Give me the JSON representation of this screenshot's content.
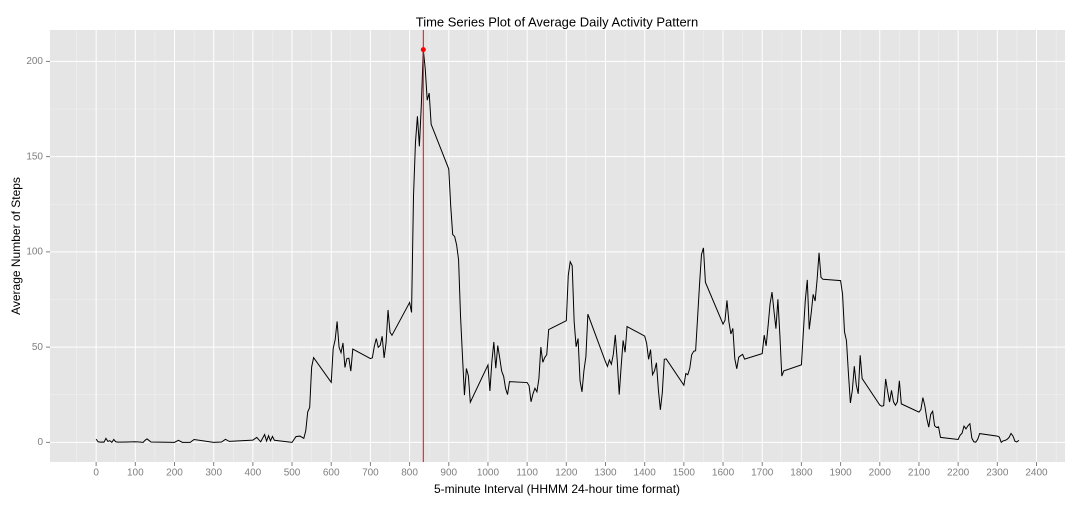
{
  "chart_data": {
    "type": "line",
    "title": "Time Series Plot of Average Daily Activity Pattern",
    "x_label": "5-minute Interval (HHMM 24-hour time format)",
    "y_label": "Average Number of Steps",
    "x": [
      0,
      5,
      10,
      15,
      20,
      25,
      30,
      35,
      40,
      45,
      50,
      55,
      100,
      110,
      120,
      125,
      130,
      140,
      200,
      210,
      220,
      240,
      250,
      300,
      320,
      330,
      340,
      400,
      410,
      420,
      430,
      435,
      440,
      445,
      450,
      455,
      500,
      510,
      520,
      530,
      535,
      540,
      545,
      550,
      555,
      600,
      605,
      610,
      615,
      620,
      625,
      630,
      635,
      640,
      645,
      650,
      655,
      700,
      705,
      710,
      715,
      720,
      725,
      730,
      735,
      740,
      745,
      750,
      755,
      800,
      805,
      810,
      815,
      820,
      825,
      830,
      835,
      840,
      845,
      850,
      855,
      900,
      905,
      910,
      915,
      920,
      925,
      930,
      935,
      940,
      945,
      950,
      955,
      1000,
      1005,
      1010,
      1015,
      1020,
      1025,
      1030,
      1035,
      1040,
      1045,
      1050,
      1055,
      1100,
      1105,
      1110,
      1115,
      1120,
      1125,
      1130,
      1135,
      1140,
      1145,
      1150,
      1155,
      1200,
      1205,
      1210,
      1215,
      1220,
      1225,
      1230,
      1235,
      1240,
      1245,
      1250,
      1255,
      1300,
      1305,
      1310,
      1315,
      1320,
      1325,
      1330,
      1335,
      1340,
      1345,
      1350,
      1355,
      1400,
      1405,
      1410,
      1415,
      1420,
      1425,
      1430,
      1435,
      1440,
      1445,
      1450,
      1455,
      1500,
      1505,
      1510,
      1515,
      1520,
      1525,
      1530,
      1535,
      1540,
      1545,
      1550,
      1555,
      1600,
      1605,
      1610,
      1615,
      1620,
      1625,
      1630,
      1635,
      1640,
      1645,
      1650,
      1655,
      1700,
      1705,
      1710,
      1715,
      1720,
      1725,
      1730,
      1735,
      1740,
      1745,
      1750,
      1755,
      1800,
      1805,
      1810,
      1815,
      1820,
      1825,
      1830,
      1835,
      1840,
      1845,
      1850,
      1855,
      1900,
      1905,
      1910,
      1915,
      1920,
      1925,
      1930,
      1935,
      1940,
      1945,
      1950,
      1955,
      2000,
      2005,
      2010,
      2015,
      2020,
      2025,
      2030,
      2035,
      2040,
      2045,
      2050,
      2055,
      2100,
      2105,
      2110,
      2115,
      2120,
      2125,
      2130,
      2135,
      2140,
      2145,
      2150,
      2155,
      2200,
      2205,
      2210,
      2215,
      2220,
      2225,
      2230,
      2235,
      2240,
      2245,
      2250,
      2255,
      2300,
      2305,
      2310,
      2315,
      2320,
      2325,
      2330,
      2335,
      2340,
      2345,
      2350,
      2355
    ],
    "values": [
      1.7,
      0.3,
      0.1,
      0.2,
      0.1,
      2.1,
      0.5,
      0.9,
      0,
      1.5,
      0.3,
      0.1,
      0.3,
      0.2,
      0,
      1.1,
      1.8,
      0.2,
      0,
      1.1,
      0,
      0,
      1.5,
      0,
      0.2,
      1.6,
      0.5,
      1.2,
      2.6,
      0.3,
      4.1,
      0.7,
      3.5,
      0.8,
      3.1,
      1.1,
      0,
      3.0,
      3.3,
      2.1,
      6.1,
      16,
      18.3,
      39.5,
      44.5,
      31.5,
      49.3,
      53.8,
      63.5,
      50,
      47.1,
      52.2,
      39.3,
      44,
      44.2,
      37.4,
      49,
      44,
      44.4,
      50.5,
      54.5,
      49.9,
      50.9,
      55.7,
      44.3,
      52.3,
      69.5,
      57.8,
      56.2,
      73.4,
      68.2,
      129.4,
      157.5,
      171.2,
      155.4,
      177.3,
      206.17,
      195.9,
      179.6,
      183.4,
      167,
      143.5,
      124,
      109.1,
      108.1,
      103.7,
      95.9,
      66.2,
      45.2,
      24.8,
      38.8,
      35,
      21.1,
      40.6,
      27,
      42.4,
      52.7,
      38.9,
      50.8,
      44.3,
      37.4,
      34.7,
      28.3,
      25.1,
      31.9,
      31.4,
      29.7,
      21.3,
      25.5,
      28.4,
      26.5,
      33.4,
      50,
      42,
      44.6,
      46,
      59.2,
      63.9,
      87.7,
      94.8,
      92.8,
      63.4,
      50.2,
      54.5,
      32.4,
      26.5,
      37.7,
      45.1,
      67.3,
      42.3,
      39.9,
      43.3,
      41,
      46.2,
      56.4,
      42.8,
      25.1,
      40,
      53.5,
      47.3,
      60.8,
      55.8,
      52,
      43.6,
      48.7,
      35.5,
      37.5,
      41.8,
      27.5,
      17.1,
      26.1,
      43.6,
      43.8,
      30,
      36.1,
      35.5,
      38.8,
      46,
      47.8,
      48.1,
      65.3,
      82.9,
      98.7,
      102.1,
      84,
      62.1,
      64.1,
      74.5,
      63.2,
      56.9,
      59.8,
      43.9,
      38.6,
      44.7,
      45.5,
      46.2,
      43.7,
      46.6,
      56.3,
      50.7,
      61.2,
      72.7,
      78.9,
      68.9,
      59.7,
      75.1,
      56.5,
      34.8,
      37.5,
      40.7,
      58,
      74.7,
      85.3,
      59.3,
      67.8,
      77.7,
      74.2,
      85.3,
      99.5,
      86.6,
      85.6,
      84.9,
      77.8,
      58,
      53.4,
      36.3,
      20.7,
      27.4,
      40,
      30.2,
      25.5,
      45.7,
      33.5,
      19.6,
      19,
      19.3,
      33.3,
      26.8,
      21.2,
      27.3,
      21.3,
      19.5,
      21.3,
      32.3,
      20.2,
      15.9,
      17.2,
      23.5,
      19.2,
      12.5,
      8,
      14.7,
      16.3,
      8.7,
      7.8,
      8.1,
      2.6,
      1.5,
      3.7,
      4.8,
      8.5,
      7.1,
      8.7,
      9.8,
      2.2,
      0.3,
      0.1,
      1.6,
      4.6,
      3.3,
      2.8,
      0,
      0.8,
      1,
      1.6,
      2.6,
      4.7,
      3.3,
      0.6,
      0.2,
      1.1
    ],
    "color": "#000000",
    "max_point": {
      "x": 835,
      "y": 206.17,
      "color": "#ff0000"
    },
    "vline": {
      "x": 835,
      "color": "#ff0000"
    },
    "xlim": [
      -117.75,
      2472.75
    ],
    "ylim": [
      -10.31,
      216.48
    ],
    "xticks": [
      0,
      100,
      200,
      300,
      400,
      500,
      600,
      700,
      800,
      900,
      1000,
      1100,
      1200,
      1300,
      1400,
      1500,
      1600,
      1700,
      1800,
      1900,
      2000,
      2100,
      2200,
      2300,
      2400
    ],
    "yticks": [
      0,
      50,
      100,
      150,
      200
    ],
    "x_minor_grid": [
      -50,
      50,
      150,
      250,
      350,
      450,
      550,
      650,
      750,
      850,
      950,
      1050,
      1150,
      1250,
      1350,
      1450,
      1550,
      1650,
      1750,
      1850,
      1950,
      2050,
      2150,
      2250,
      2350,
      2450
    ],
    "y_minor_grid": [
      25,
      75,
      125,
      175
    ],
    "grid": true
  }
}
